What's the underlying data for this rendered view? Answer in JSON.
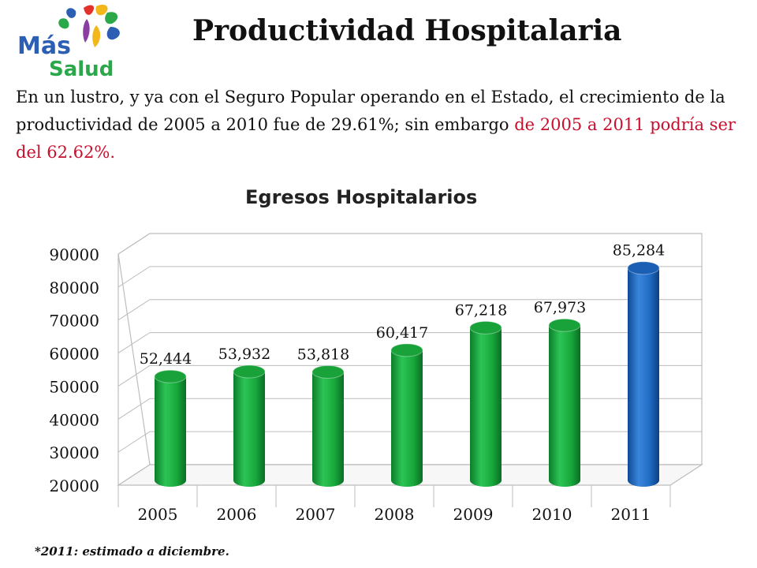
{
  "logo": {
    "line1": "Más",
    "line2": "Salud",
    "colors": [
      "#2c5fb3",
      "#2aa84a",
      "#f2b81b",
      "#e4322b",
      "#8a3fa0"
    ]
  },
  "title": "Productividad Hospitalaria",
  "intro": {
    "part1": "En un lustro, y ya con el Seguro Popular operando en el Estado, el crecimiento de la productividad de 2005 a 2010 fue de 29.61%; sin embargo ",
    "highlight": "de 2005 a 2011 podría  ser del 62.62%."
  },
  "footnote": "*2011: estimado a diciembre.",
  "chart_data": {
    "type": "bar",
    "title": "Egresos Hospitalarios",
    "xlabel": "",
    "ylabel": "",
    "categories": [
      "2005",
      "2006",
      "2007",
      "2008",
      "2009",
      "2010",
      "2011"
    ],
    "values": [
      52444,
      53932,
      53818,
      60417,
      67218,
      67973,
      85284
    ],
    "data_labels": [
      "52,444",
      "53,932",
      "53,818",
      "60,417",
      "67,218",
      "67,973",
      "85,284"
    ],
    "ylim": [
      20000,
      90000
    ],
    "yticks": [
      20000,
      30000,
      40000,
      50000,
      60000,
      70000,
      80000,
      90000
    ],
    "grid": true,
    "legend": "none",
    "bar_colors": [
      "#1aa23a",
      "#1aa23a",
      "#1aa23a",
      "#1aa23a",
      "#1aa23a",
      "#1aa23a",
      "#1a5fb4"
    ]
  }
}
